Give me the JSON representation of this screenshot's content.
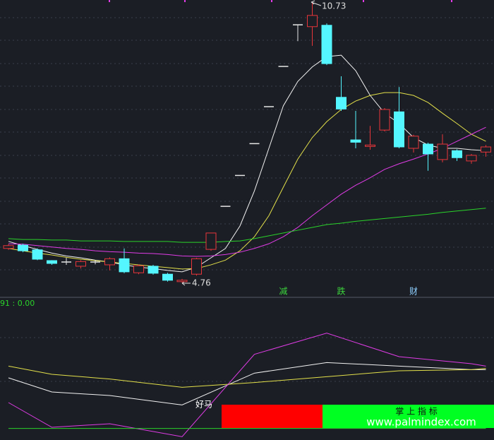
{
  "chart_data": [
    {
      "type": "candlestick",
      "up_color": "#e8353a",
      "down_color": "#54f6ff",
      "flat_color": "#e6e6e6",
      "ylim": [
        4.46,
        10.8
      ],
      "open": [
        5.49,
        5.56,
        5.46,
        5.23,
        5.2,
        5.11,
        5.2,
        5.14,
        5.27,
        4.97,
        5.11,
        4.94,
        4.78,
        4.94,
        5.47,
        6.39,
        7.05,
        7.73,
        8.52,
        9.38,
        10.27,
        10.23,
        10.26,
        8.72,
        7.81,
        7.67,
        8.02,
        8.41,
        7.63,
        7.72,
        7.39,
        7.58,
        7.36,
        7.55
      ],
      "high": [
        5.58,
        5.59,
        5.49,
        5.24,
        5.29,
        5.24,
        5.24,
        5.3,
        5.49,
        5.15,
        5.14,
        4.97,
        4.84,
        5.29,
        5.82,
        6.39,
        7.05,
        7.73,
        8.52,
        9.38,
        10.27,
        10.73,
        10.3,
        9.17,
        8.43,
        8.11,
        8.49,
        8.94,
        7.92,
        7.75,
        7.93,
        7.61,
        7.51,
        7.7
      ],
      "low": [
        5.46,
        5.41,
        5.24,
        5.14,
        5.14,
        5.06,
        5.15,
        5.02,
        4.96,
        4.94,
        4.93,
        4.78,
        4.76,
        4.91,
        5.44,
        6.39,
        7.05,
        7.73,
        8.52,
        9.38,
        9.92,
        9.82,
        9.41,
        8.43,
        7.63,
        7.6,
        7.99,
        7.63,
        7.54,
        7.15,
        7.33,
        7.36,
        7.3,
        7.45
      ],
      "close": [
        5.55,
        5.44,
        5.26,
        5.17,
        5.2,
        5.21,
        5.2,
        5.27,
        4.99,
        5.12,
        4.96,
        4.81,
        4.81,
        5.27,
        5.82,
        6.39,
        7.05,
        7.73,
        8.52,
        9.38,
        10.27,
        10.47,
        9.44,
        8.47,
        7.76,
        7.7,
        8.46,
        7.66,
        7.89,
        7.51,
        7.72,
        7.43,
        7.48,
        7.66
      ],
      "series": [
        {
          "color": "#f2f2f2",
          "values": [
            5.64,
            5.55,
            5.47,
            5.39,
            5.33,
            5.29,
            5.24,
            5.2,
            5.14,
            5.09,
            5.06,
            5.02,
            4.99,
            5.09,
            5.29,
            5.49,
            5.97,
            6.72,
            7.63,
            8.54,
            9.06,
            9.37,
            9.59,
            9.62,
            9.29,
            8.76,
            8.38,
            8.16,
            7.86,
            7.7,
            7.63,
            7.63,
            7.6,
            7.58
          ]
        },
        {
          "color": "#e3e04a",
          "values": [
            5.49,
            5.44,
            5.39,
            5.35,
            5.3,
            5.26,
            5.23,
            5.2,
            5.17,
            5.14,
            5.11,
            5.08,
            5.05,
            5.06,
            5.14,
            5.24,
            5.44,
            5.74,
            6.19,
            6.8,
            7.4,
            7.86,
            8.2,
            8.46,
            8.64,
            8.76,
            8.82,
            8.82,
            8.76,
            8.61,
            8.38,
            8.16,
            7.93,
            7.78
          ]
        },
        {
          "color": "#e03ce6",
          "values": [
            5.59,
            5.58,
            5.55,
            5.52,
            5.49,
            5.47,
            5.44,
            5.42,
            5.41,
            5.39,
            5.38,
            5.36,
            5.33,
            5.32,
            5.33,
            5.36,
            5.41,
            5.49,
            5.59,
            5.74,
            5.94,
            6.19,
            6.42,
            6.65,
            6.84,
            7.0,
            7.18,
            7.3,
            7.4,
            7.51,
            7.63,
            7.78,
            7.93,
            8.08
          ]
        },
        {
          "color": "#2ad32a",
          "values": [
            5.7,
            5.68,
            5.68,
            5.67,
            5.67,
            5.65,
            5.65,
            5.65,
            5.64,
            5.64,
            5.64,
            5.64,
            5.62,
            5.62,
            5.62,
            5.64,
            5.65,
            5.7,
            5.76,
            5.82,
            5.88,
            5.94,
            6.0,
            6.03,
            6.07,
            6.1,
            6.13,
            6.16,
            6.19,
            6.22,
            6.26,
            6.29,
            6.32,
            6.35
          ]
        }
      ],
      "annotations": [
        {
          "text": "减",
          "index": 19,
          "color": "#3cd43c"
        },
        {
          "text": "跌",
          "index": 23,
          "color": "#3cd43c"
        },
        {
          "text": "财",
          "index": 28,
          "color": "#8fd0ff"
        }
      ]
    },
    {
      "type": "line",
      "label": "91 : 0.00",
      "label_color": "#2ad32a",
      "ylim": [
        -8,
        106
      ],
      "x": [
        0,
        3,
        7,
        12,
        17,
        22,
        27,
        32,
        33
      ],
      "series": [
        {
          "color": "#f2f2f2",
          "values": [
            43,
            31,
            28,
            20,
            47,
            56,
            53,
            50,
            50
          ]
        },
        {
          "color": "#e3e04a",
          "values": [
            53,
            46,
            42,
            35,
            39,
            44,
            49,
            50,
            51
          ]
        },
        {
          "color": "#e03ce6",
          "values": [
            22,
            1,
            4,
            -7,
            63,
            81,
            61,
            55,
            53
          ]
        },
        {
          "color": "#2ad32a",
          "values": [
            0,
            0,
            0,
            0,
            0,
            0,
            0,
            0,
            0
          ]
        }
      ],
      "annotation": "好马",
      "banner": {
        "title": "掌 上 指 标",
        "url": "www.palmindex.com"
      }
    }
  ]
}
